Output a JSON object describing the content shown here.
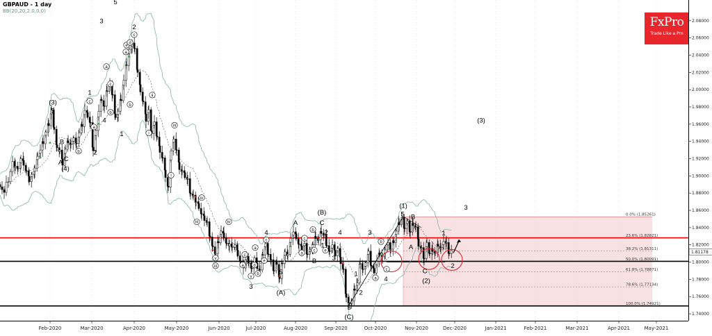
{
  "header": {
    "symbol_title": "GBPAUD - 1 day",
    "indicator_label": "BB(20,20,2.0,0,0)"
  },
  "logo": {
    "brand": "FxPro",
    "tagline": "Trade Like a Pro"
  },
  "colors": {
    "candle": "#000000",
    "bollinger": "#7fb8a8",
    "ma": "#555555",
    "resistance": "#ff0000",
    "support": "#000000",
    "fib_zone": "#f3c9cc",
    "circle": "#e0262c",
    "up_arrow": "#2a9a3a",
    "down_arrow": "#d02020"
  },
  "chart_data": {
    "type": "candlestick",
    "title": "GBPAUD - 1 day",
    "x_ticks": [
      "Feb-2020",
      "Mar-2020",
      "Apr-2020",
      "May-2020",
      "Jun-2020",
      "Jul-2020",
      "Aug-2020",
      "Sep-2020",
      "Oct-2020",
      "Nov-2020",
      "Dec-2020",
      "Jan-2021",
      "Feb-2021",
      "Mar-2021",
      "Apr-2021",
      "May-2021"
    ],
    "ylim": [
      1.732,
      2.104
    ],
    "y_ticks": [
      1.74,
      1.76,
      1.78,
      1.8,
      1.82,
      1.84,
      1.86,
      1.88,
      1.9,
      1.92,
      1.94,
      1.96,
      1.98,
      2.0,
      2.02,
      2.04,
      2.06,
      2.08
    ],
    "current_price": "1.81178",
    "horizontal_lines": [
      {
        "name": "resistance",
        "value": 1.8282
      },
      {
        "name": "support",
        "value": 1.8009
      },
      {
        "name": "support-lower",
        "value": 1.7492
      }
    ],
    "fibonacci": [
      {
        "label": "0.0%",
        "value": 1.85261,
        "text": "(1.85261)"
      },
      {
        "label": "23.6%",
        "value": 1.82821,
        "text": "(1.82821)"
      },
      {
        "label": "38.2%",
        "value": 1.81311,
        "text": "(1.81311)"
      },
      {
        "label": "50.0%",
        "value": 1.80091,
        "text": "(1.80091)"
      },
      {
        "label": "61.8%",
        "value": 1.78871,
        "text": "(1.78871)"
      },
      {
        "label": "78.6%",
        "value": 1.77134,
        "text": "(1.77134)"
      },
      {
        "label": "100.0%",
        "value": 1.74921,
        "text": "(1.74921)"
      }
    ],
    "close_path": [
      [
        0,
        1.89
      ],
      [
        3,
        1.885
      ],
      [
        6,
        1.88
      ],
      [
        9,
        1.89
      ],
      [
        12,
        1.895
      ],
      [
        15,
        1.905
      ],
      [
        18,
        1.915
      ],
      [
        22,
        1.912
      ],
      [
        26,
        1.906
      ],
      [
        30,
        1.92
      ],
      [
        34,
        1.915
      ],
      [
        38,
        1.905
      ],
      [
        42,
        1.895
      ],
      [
        46,
        1.9
      ],
      [
        50,
        1.91
      ],
      [
        54,
        1.92
      ],
      [
        58,
        1.93
      ],
      [
        62,
        1.94
      ],
      [
        66,
        1.95
      ],
      [
        70,
        1.96
      ],
      [
        74,
        1.975
      ],
      [
        78,
        1.955
      ],
      [
        82,
        1.93
      ],
      [
        86,
        1.93
      ],
      [
        90,
        1.915
      ],
      [
        94,
        1.93
      ],
      [
        98,
        1.94
      ],
      [
        102,
        1.935
      ],
      [
        106,
        1.945
      ],
      [
        110,
        1.935
      ],
      [
        114,
        1.95
      ],
      [
        118,
        1.96
      ],
      [
        122,
        1.975
      ],
      [
        126,
        1.97
      ],
      [
        130,
        1.96
      ],
      [
        134,
        1.93
      ],
      [
        138,
        1.95
      ],
      [
        142,
        1.975
      ],
      [
        146,
        1.99
      ],
      [
        150,
        1.98
      ],
      [
        154,
        2.0
      ],
      [
        158,
        2.005
      ],
      [
        162,
        1.995
      ],
      [
        166,
        1.965
      ],
      [
        170,
        1.975
      ],
      [
        174,
        1.99
      ],
      [
        178,
        2.01
      ],
      [
        182,
        2.03
      ],
      [
        186,
        2.045
      ],
      [
        190,
        2.055
      ],
      [
        194,
        2.045
      ],
      [
        198,
        2.02
      ],
      [
        202,
        2.0
      ],
      [
        206,
        1.985
      ],
      [
        210,
        1.965
      ],
      [
        214,
        1.975
      ],
      [
        218,
        1.95
      ],
      [
        222,
        1.96
      ],
      [
        226,
        1.945
      ],
      [
        230,
        1.93
      ],
      [
        234,
        1.92
      ],
      [
        238,
        1.9
      ],
      [
        242,
        1.885
      ],
      [
        246,
        1.93
      ],
      [
        250,
        1.94
      ],
      [
        254,
        1.93
      ],
      [
        258,
        1.91
      ],
      [
        262,
        1.905
      ],
      [
        266,
        1.9
      ],
      [
        270,
        1.895
      ],
      [
        274,
        1.88
      ],
      [
        278,
        1.875
      ],
      [
        282,
        1.87
      ],
      [
        286,
        1.865
      ],
      [
        290,
        1.855
      ],
      [
        294,
        1.85
      ],
      [
        298,
        1.845
      ],
      [
        302,
        1.83
      ],
      [
        306,
        1.815
      ],
      [
        310,
        1.81
      ],
      [
        314,
        1.825
      ],
      [
        318,
        1.835
      ],
      [
        322,
        1.83
      ],
      [
        326,
        1.82
      ],
      [
        330,
        1.822
      ],
      [
        334,
        1.815
      ],
      [
        338,
        1.82
      ],
      [
        342,
        1.81
      ],
      [
        346,
        1.8
      ],
      [
        350,
        1.795
      ],
      [
        354,
        1.805
      ],
      [
        358,
        1.8
      ],
      [
        362,
        1.79
      ],
      [
        366,
        1.805
      ],
      [
        370,
        1.795
      ],
      [
        374,
        1.79
      ],
      [
        378,
        1.81
      ],
      [
        382,
        1.82
      ],
      [
        386,
        1.81
      ],
      [
        390,
        1.8
      ],
      [
        394,
        1.79
      ],
      [
        398,
        1.8
      ],
      [
        402,
        1.78
      ],
      [
        406,
        1.8
      ],
      [
        410,
        1.81
      ],
      [
        414,
        1.81
      ],
      [
        418,
        1.825
      ],
      [
        422,
        1.835
      ],
      [
        426,
        1.83
      ],
      [
        430,
        1.82
      ],
      [
        434,
        1.815
      ],
      [
        438,
        1.82
      ],
      [
        442,
        1.81
      ],
      [
        446,
        1.812
      ],
      [
        450,
        1.82
      ],
      [
        454,
        1.83
      ],
      [
        458,
        1.825
      ],
      [
        462,
        1.835
      ],
      [
        466,
        1.83
      ],
      [
        470,
        1.82
      ],
      [
        474,
        1.81
      ],
      [
        478,
        1.82
      ],
      [
        482,
        1.81
      ],
      [
        486,
        1.815
      ],
      [
        490,
        1.8
      ],
      [
        494,
        1.79
      ],
      [
        498,
        1.76
      ],
      [
        502,
        1.75
      ],
      [
        506,
        1.755
      ],
      [
        510,
        1.77
      ],
      [
        514,
        1.775
      ],
      [
        518,
        1.8
      ],
      [
        522,
        1.79
      ],
      [
        526,
        1.8
      ],
      [
        530,
        1.81
      ],
      [
        534,
        1.795
      ],
      [
        538,
        1.79
      ],
      [
        542,
        1.8
      ],
      [
        546,
        1.81
      ],
      [
        550,
        1.805
      ],
      [
        554,
        1.815
      ],
      [
        558,
        1.82
      ],
      [
        562,
        1.815
      ],
      [
        566,
        1.825
      ],
      [
        570,
        1.835
      ],
      [
        574,
        1.845
      ],
      [
        578,
        1.85
      ],
      [
        582,
        1.84
      ],
      [
        586,
        1.845
      ],
      [
        590,
        1.835
      ],
      [
        594,
        1.845
      ],
      [
        598,
        1.84
      ],
      [
        602,
        1.82
      ],
      [
        606,
        1.815
      ],
      [
        610,
        1.805
      ],
      [
        614,
        1.82
      ],
      [
        618,
        1.81
      ],
      [
        622,
        1.815
      ],
      [
        626,
        1.81
      ],
      [
        630,
        1.82
      ],
      [
        634,
        1.815
      ],
      [
        638,
        1.825
      ],
      [
        642,
        1.82
      ],
      [
        646,
        1.81
      ],
      [
        650,
        1.812
      ]
    ],
    "wave_labels": [
      {
        "t": "(3)",
        "x": 76,
        "v": 1.983
      },
      {
        "t": "5",
        "x": 76,
        "v": 1.973
      },
      {
        "t": "B",
        "x": 89,
        "v": 1.937
      },
      {
        "t": "C",
        "x": 95,
        "v": 1.917
      },
      {
        "t": "A",
        "x": 87,
        "v": 1.913
      },
      {
        "t": "(4)",
        "x": 94,
        "v": 1.906
      },
      {
        "t": "1",
        "x": 129,
        "v": 1.994
      },
      {
        "t": "3",
        "x": 146,
        "v": 2.077
      },
      {
        "t": "5",
        "x": 166,
        "v": 2.099
      },
      {
        "t": "4",
        "x": 150,
        "v": 1.962
      },
      {
        "t": "2",
        "x": 137,
        "v": 1.925
      },
      {
        "t": "1",
        "x": 175,
        "v": 1.946
      },
      {
        "t": "2",
        "x": 193,
        "v": 2.07
      },
      {
        "t": "(3)",
        "x": 692,
        "v": 1.962
      },
      {
        "t": "(1)",
        "x": 580,
        "v": 1.863
      },
      {
        "t": "5",
        "x": 579,
        "v": 1.853
      },
      {
        "t": "B",
        "x": 594,
        "v": 1.85
      },
      {
        "t": "A",
        "x": 591,
        "v": 1.815
      },
      {
        "t": "C",
        "x": 611,
        "v": 1.787
      },
      {
        "t": "(2)",
        "x": 613,
        "v": 1.776
      },
      {
        "t": "1",
        "x": 638,
        "v": 1.831
      },
      {
        "t": "2",
        "x": 651,
        "v": 1.793
      },
      {
        "t": "3",
        "x": 670,
        "v": 1.861
      },
      {
        "t": "(B)",
        "x": 463,
        "v": 1.855
      },
      {
        "t": "C",
        "x": 463,
        "v": 1.843
      },
      {
        "t": "A",
        "x": 425,
        "v": 1.843
      },
      {
        "t": "4",
        "x": 383,
        "v": 1.832
      },
      {
        "t": "4",
        "x": 489,
        "v": 1.832
      },
      {
        "t": "1",
        "x": 464,
        "v": 1.817
      },
      {
        "t": "2",
        "x": 469,
        "v": 1.832
      },
      {
        "t": "3",
        "x": 480,
        "v": 1.802
      },
      {
        "t": "B",
        "x": 452,
        "v": 1.799
      },
      {
        "t": "3",
        "x": 532,
        "v": 1.832
      },
      {
        "t": "1",
        "x": 512,
        "v": 1.784
      },
      {
        "t": "2",
        "x": 519,
        "v": 1.762
      },
      {
        "t": "4",
        "x": 555,
        "v": 1.778
      },
      {
        "t": "5",
        "x": 502,
        "v": 1.745
      },
      {
        "t": "(C)",
        "x": 502,
        "v": 1.734
      },
      {
        "t": "3",
        "x": 361,
        "v": 1.769
      },
      {
        "t": "5",
        "x": 404,
        "v": 1.786
      },
      {
        "t": "(A)",
        "x": 404,
        "v": 1.762
      }
    ],
    "circled_labels": [
      {
        "t": "c",
        "x": 129,
        "v": 1.985
      },
      {
        "t": "a",
        "x": 135,
        "v": 1.955
      },
      {
        "t": "b",
        "x": 113,
        "v": 1.927
      },
      {
        "t": "a",
        "x": 153,
        "v": 2.025
      },
      {
        "t": "c",
        "x": 159,
        "v": 2.005
      },
      {
        "t": "b",
        "x": 159,
        "v": 1.972
      },
      {
        "t": "e",
        "x": 182,
        "v": 2.05
      },
      {
        "t": "a",
        "x": 181,
        "v": 2.042
      },
      {
        "t": "d",
        "x": 187,
        "v": 2.053
      },
      {
        "t": "c",
        "x": 193,
        "v": 2.062
      },
      {
        "t": "b",
        "x": 187,
        "v": 1.981
      },
      {
        "t": "ii",
        "x": 219,
        "v": 1.992
      },
      {
        "t": "i",
        "x": 214,
        "v": 1.948
      },
      {
        "t": "iii",
        "x": 251,
        "v": 1.957
      },
      {
        "t": "i",
        "x": 246,
        "v": 1.899
      },
      {
        "t": "iv",
        "x": 290,
        "v": 1.873
      },
      {
        "t": "iii",
        "x": 283,
        "v": 1.845
      },
      {
        "t": "iv",
        "x": 329,
        "v": 1.845
      },
      {
        "t": "v",
        "x": 310,
        "v": 1.803
      },
      {
        "t": "iii",
        "x": 310,
        "v": 1.794
      },
      {
        "t": "c",
        "x": 383,
        "v": 1.824
      },
      {
        "t": "a",
        "x": 367,
        "v": 1.815
      },
      {
        "t": "e",
        "x": 380,
        "v": 1.8
      },
      {
        "t": "c",
        "x": 352,
        "v": 1.807
      },
      {
        "t": "a",
        "x": 349,
        "v": 1.795
      },
      {
        "t": "d",
        "x": 366,
        "v": 1.795
      },
      {
        "t": "v",
        "x": 361,
        "v": 1.782
      },
      {
        "t": "b",
        "x": 371,
        "v": 1.785
      },
      {
        "t": "b",
        "x": 450,
        "v": 1.836
      },
      {
        "t": "c",
        "x": 438,
        "v": 1.826
      },
      {
        "t": "a",
        "x": 434,
        "v": 1.809
      },
      {
        "t": "e",
        "x": 468,
        "v": 1.812
      },
      {
        "t": "c",
        "x": 452,
        "v": 1.812
      },
      {
        "t": "b",
        "x": 548,
        "v": 1.822
      },
      {
        "t": "a",
        "x": 540,
        "v": 1.78
      },
      {
        "t": "c",
        "x": 556,
        "v": 1.79
      }
    ]
  }
}
